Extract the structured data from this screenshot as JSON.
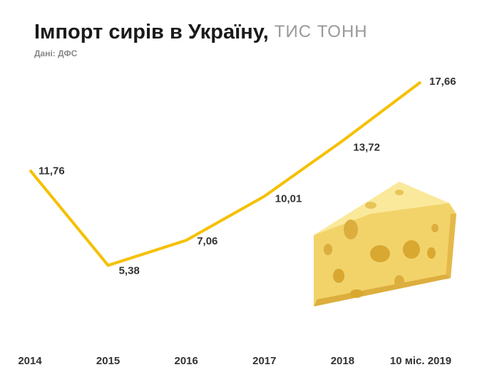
{
  "chart_data": {
    "type": "line",
    "title": "Імпорт сирів в Україну,",
    "unit": "ТИС ТОНН",
    "subtitle": "Дані: ДФС",
    "categories": [
      "2014",
      "2015",
      "2016",
      "2017",
      "2018",
      "10 міс. 2019"
    ],
    "values": [
      11.76,
      5.38,
      7.06,
      10.01,
      13.72,
      17.66
    ],
    "value_labels": [
      "11,76",
      "5,38",
      "7,06",
      "10,01",
      "13,72",
      "17,66"
    ],
    "color": "#f5c000",
    "ylim": [
      0,
      18
    ]
  }
}
